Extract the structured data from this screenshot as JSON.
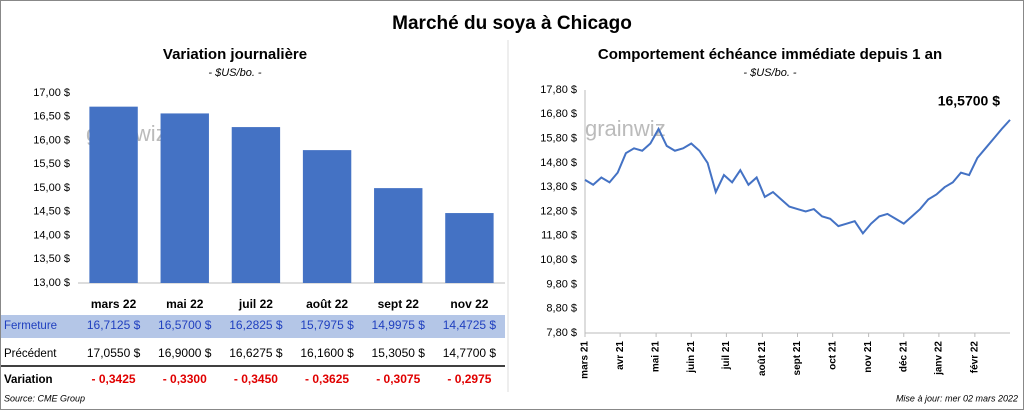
{
  "title": "Marché du soya à Chicago",
  "watermark": "grainwiz",
  "chart_data": [
    {
      "type": "bar",
      "title": "Variation journalière",
      "subtitle": "- $US/bo. -",
      "categories": [
        "mars 22",
        "mai 22",
        "juil 22",
        "août 22",
        "sept 22",
        "nov 22"
      ],
      "values": [
        16.7125,
        16.57,
        16.2825,
        15.7975,
        14.9975,
        14.4725
      ],
      "color": "#4472c4",
      "ylim": [
        13,
        17
      ],
      "yticks": [
        {
          "value": 13,
          "label": "13,00 $"
        },
        {
          "value": 13.5,
          "label": "13,50 $"
        },
        {
          "value": 14,
          "label": "14,00 $"
        },
        {
          "value": 14.5,
          "label": "14,50 $"
        },
        {
          "value": 15,
          "label": "15,00 $"
        },
        {
          "value": 15.5,
          "label": "15,50 $"
        },
        {
          "value": 16,
          "label": "16,00 $"
        },
        {
          "value": 16.5,
          "label": "16,50 $"
        },
        {
          "value": 17,
          "label": "17,00 $"
        }
      ]
    },
    {
      "type": "line",
      "title": "Comportement  échéance immédiate depuis 1 an",
      "subtitle": "- $US/bo. -",
      "color": "#4472c4",
      "values": [
        14.1,
        13.9,
        14.2,
        14.0,
        14.4,
        15.2,
        15.4,
        15.3,
        15.6,
        16.2,
        15.5,
        15.3,
        15.4,
        15.6,
        15.3,
        14.8,
        13.6,
        14.3,
        14.0,
        14.5,
        13.9,
        14.2,
        13.4,
        13.6,
        13.3,
        13.0,
        12.9,
        12.8,
        12.9,
        12.6,
        12.5,
        12.2,
        12.3,
        12.4,
        11.9,
        12.3,
        12.6,
        12.7,
        12.5,
        12.3,
        12.6,
        12.9,
        13.3,
        13.5,
        13.8,
        14.0,
        14.4,
        14.3,
        15.0,
        15.4,
        15.8,
        16.2,
        16.57
      ],
      "value_labels": {
        "52": "16,5700 $"
      },
      "xlim": [
        0,
        52
      ],
      "xticks": [
        {
          "value": 0,
          "label": "mars 21"
        },
        {
          "value": 4.3,
          "label": "avr 21"
        },
        {
          "value": 8.7,
          "label": "mai 21"
        },
        {
          "value": 13,
          "label": "juin 21"
        },
        {
          "value": 17.3,
          "label": "juil 21"
        },
        {
          "value": 21.7,
          "label": "août 21"
        },
        {
          "value": 26,
          "label": "sept 21"
        },
        {
          "value": 30.3,
          "label": "oct 21"
        },
        {
          "value": 34.7,
          "label": "nov 21"
        },
        {
          "value": 39,
          "label": "déc 21"
        },
        {
          "value": 43.3,
          "label": "janv 22"
        },
        {
          "value": 47.7,
          "label": "févr 22"
        }
      ],
      "ylim": [
        7.8,
        17.8
      ],
      "yticks": [
        {
          "value": 7.8,
          "label": "7,80 $"
        },
        {
          "value": 8.8,
          "label": "8,80 $"
        },
        {
          "value": 9.8,
          "label": "9,80 $"
        },
        {
          "value": 10.8,
          "label": "10,80 $"
        },
        {
          "value": 11.8,
          "label": "11,80 $"
        },
        {
          "value": 12.8,
          "label": "12,80 $"
        },
        {
          "value": 13.8,
          "label": "13,80 $"
        },
        {
          "value": 14.8,
          "label": "14,80 $"
        },
        {
          "value": 15.8,
          "label": "15,80 $"
        },
        {
          "value": 16.8,
          "label": "16,80 $"
        },
        {
          "value": 17.8,
          "label": "17,80 $"
        }
      ]
    }
  ],
  "table": {
    "rows": [
      {
        "label": "Fermeture",
        "cells": [
          "16,7125 $",
          "16,5700 $",
          "16,2825 $",
          "15,7975 $",
          "14,9975 $",
          "14,4725 $"
        ]
      },
      {
        "label": "Précédent",
        "cells": [
          "17,0550 $",
          "16,9000 $",
          "16,6275 $",
          "16,1600 $",
          "15,3050 $",
          "14,7700 $"
        ]
      },
      {
        "label": "Variation",
        "cells": [
          "- 0,3425",
          "- 0,3300",
          "- 0,3450",
          "- 0,3625",
          "- 0,3075",
          "- 0,2975"
        ]
      }
    ]
  },
  "footer": {
    "source": "Source: CME Group",
    "updated": "Mise à jour: mer 02 mars 2022"
  }
}
